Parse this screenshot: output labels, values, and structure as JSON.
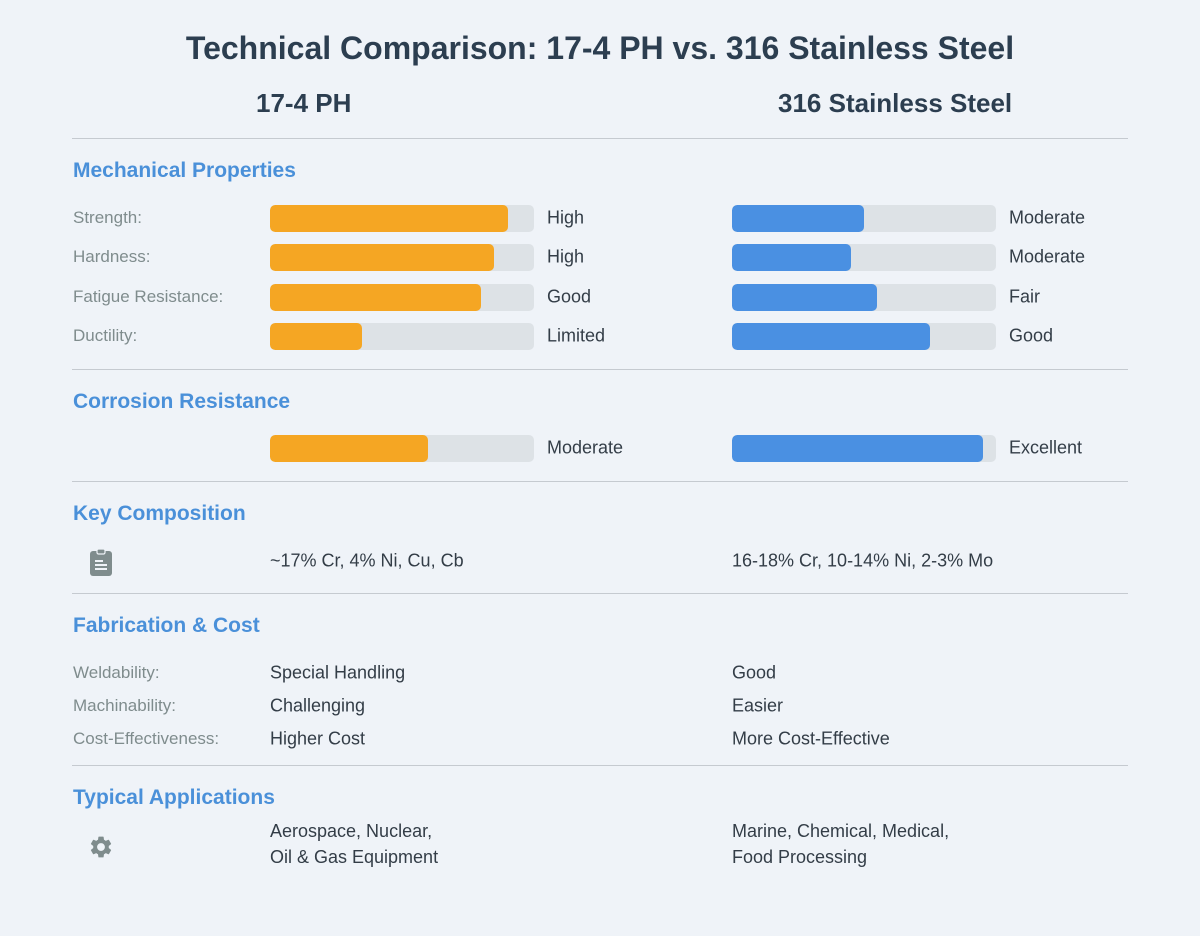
{
  "title": "Technical Comparison: 17-4 PH vs. 316 Stainless Steel",
  "columns": [
    "17-4 PH",
    "316 Stainless Steel"
  ],
  "colors": {
    "material_a": "#f5a623",
    "material_b": "#4a90e2",
    "section": "#4a90d9"
  },
  "sections": {
    "mechanical": "Mechanical Properties",
    "corrosion": "Corrosion Resistance",
    "composition": "Key Composition",
    "fabrication": "Fabrication & Cost",
    "applications": "Typical Applications"
  },
  "mechanical": [
    {
      "label": "Strength:",
      "a": {
        "text": "High",
        "level": 0.9
      },
      "b": {
        "text": "Moderate",
        "level": 0.5
      }
    },
    {
      "label": "Hardness:",
      "a": {
        "text": "High",
        "level": 0.85
      },
      "b": {
        "text": "Moderate",
        "level": 0.45
      }
    },
    {
      "label": "Fatigue Resistance:",
      "a": {
        "text": "Good",
        "level": 0.8
      },
      "b": {
        "text": "Fair",
        "level": 0.55
      }
    },
    {
      "label": "Ductility:",
      "a": {
        "text": "Limited",
        "level": 0.35
      },
      "b": {
        "text": "Good",
        "level": 0.75
      }
    }
  ],
  "corrosion": {
    "a": {
      "text": "Moderate",
      "level": 0.6
    },
    "b": {
      "text": "Excellent",
      "level": 0.95
    }
  },
  "composition": {
    "icon": "clipboard-icon",
    "a": "~17% Cr, 4% Ni, Cu, Cb",
    "b": "16-18% Cr, 10-14% Ni, 2-3% Mo"
  },
  "fabrication": [
    {
      "label": "Weldability:",
      "a": "Special Handling",
      "b": "Good"
    },
    {
      "label": "Machinability:",
      "a": "Challenging",
      "b": "Easier"
    },
    {
      "label": "Cost-Effectiveness:",
      "a": "Higher Cost",
      "b": "More Cost-Effective"
    }
  ],
  "applications": {
    "icon": "gear-icon",
    "a": [
      "Aerospace, Nuclear,",
      "Oil & Gas Equipment"
    ],
    "b": [
      "Marine, Chemical, Medical,",
      "Food Processing"
    ]
  },
  "chart_data": {
    "type": "bar",
    "title": "Technical Comparison: 17-4 PH vs. 316 Stainless Steel",
    "categories": [
      "Strength",
      "Hardness",
      "Fatigue Resistance",
      "Ductility",
      "Corrosion Resistance"
    ],
    "series": [
      {
        "name": "17-4 PH",
        "values": [
          0.9,
          0.85,
          0.8,
          0.35,
          0.6
        ],
        "labels": [
          "High",
          "High",
          "Good",
          "Limited",
          "Moderate"
        ]
      },
      {
        "name": "316 Stainless Steel",
        "values": [
          0.5,
          0.45,
          0.55,
          0.75,
          0.95
        ],
        "labels": [
          "Moderate",
          "Moderate",
          "Fair",
          "Good",
          "Excellent"
        ]
      }
    ],
    "ylim": [
      0,
      1
    ],
    "orientation": "horizontal",
    "grid": false,
    "legend": "none"
  }
}
